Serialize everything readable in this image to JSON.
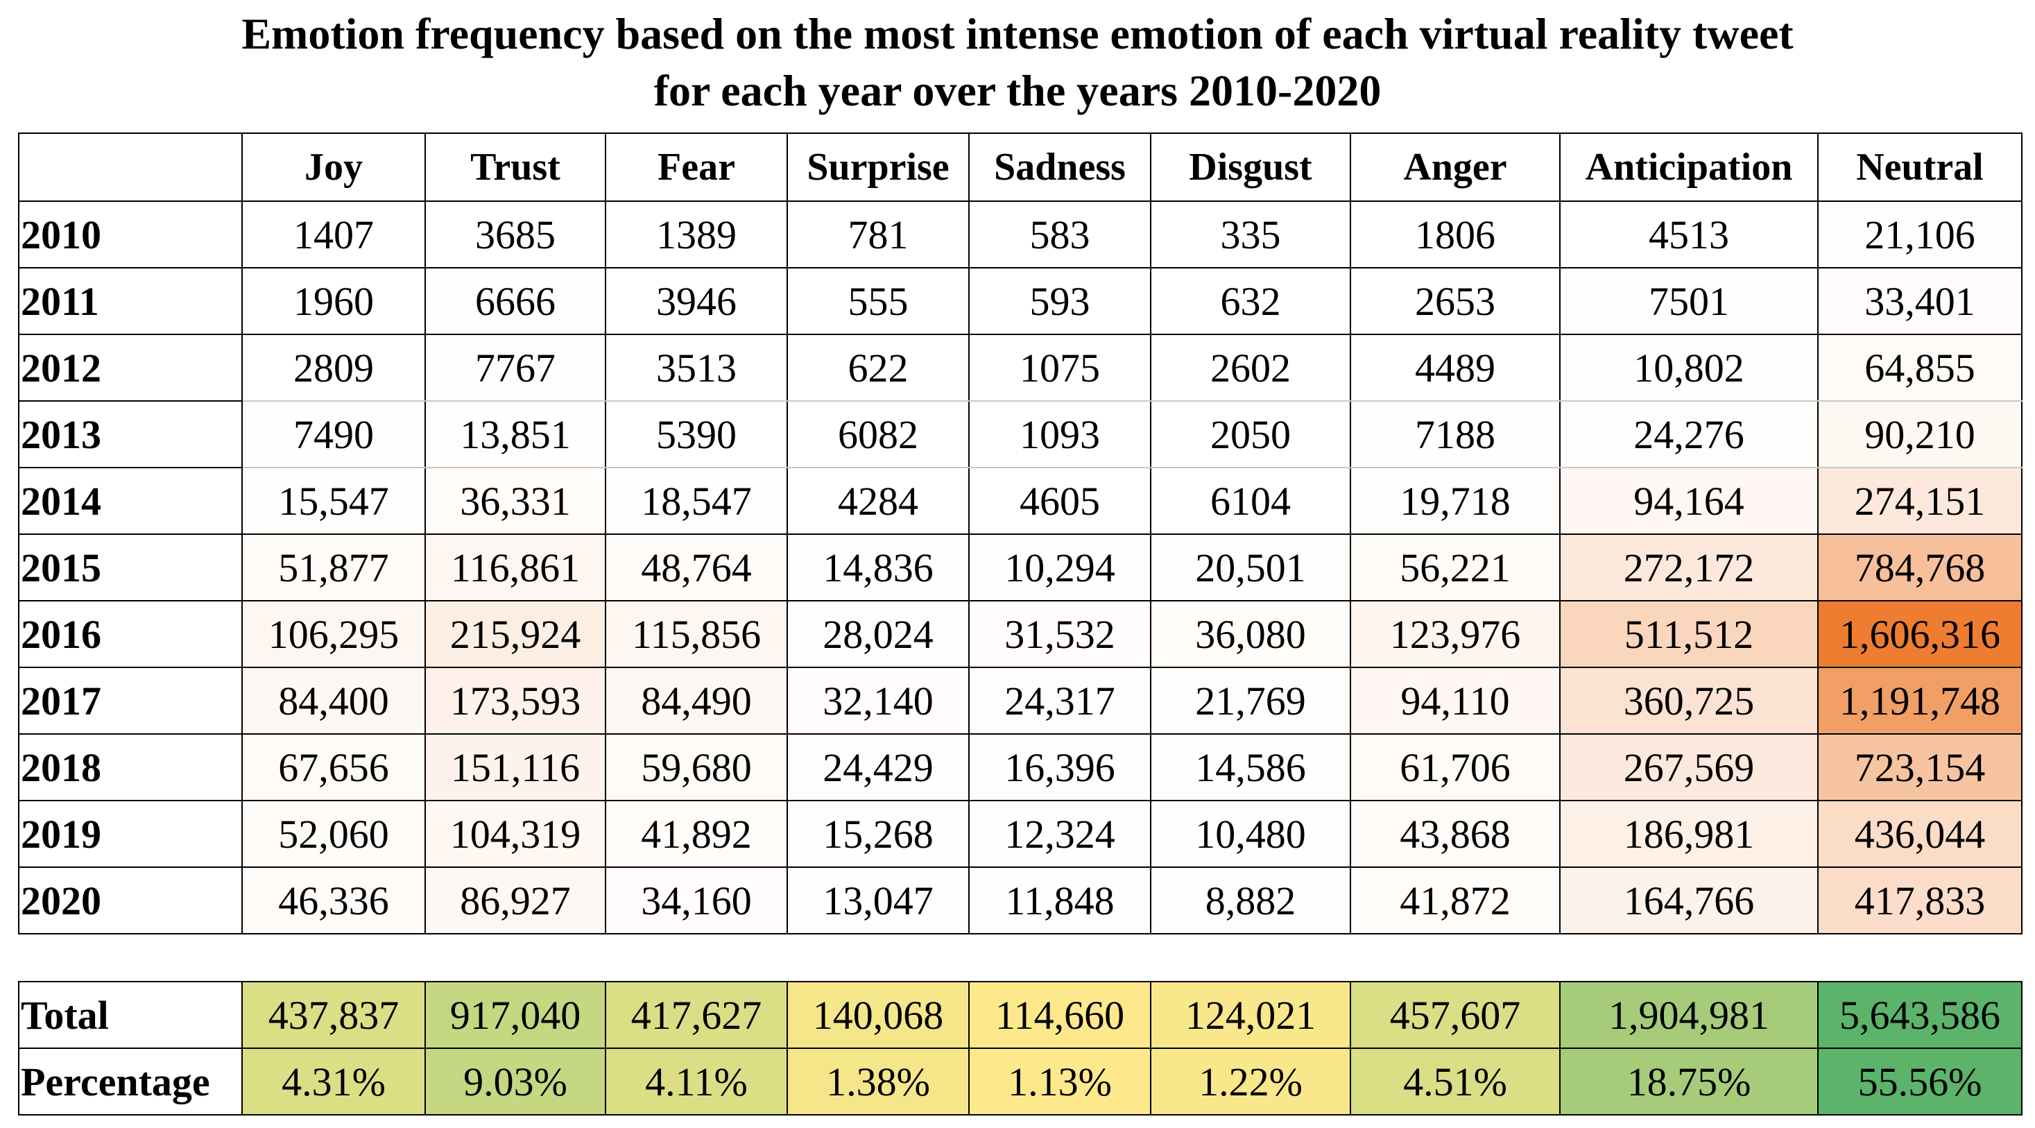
{
  "chart_data": {
    "type": "table",
    "title_lines": [
      "Emotion frequency based on the most intense emotion of each virtual reality tweet",
      "for each year over the years 2010-2020"
    ],
    "columns": [
      "Joy",
      "Trust",
      "Fear",
      "Surprise",
      "Sadness",
      "Disgust",
      "Anger",
      "Anticipation",
      "Neutral"
    ],
    "rows": [
      {
        "year": "2010",
        "values": [
          "1407",
          "3685",
          "1389",
          "781",
          "583",
          "335",
          "1806",
          "4513",
          "21,106"
        ],
        "numeric": [
          1407,
          3685,
          1389,
          781,
          583,
          335,
          1806,
          4513,
          21106
        ]
      },
      {
        "year": "2011",
        "values": [
          "1960",
          "6666",
          "3946",
          "555",
          "593",
          "632",
          "2653",
          "7501",
          "33,401"
        ],
        "numeric": [
          1960,
          6666,
          3946,
          555,
          593,
          632,
          2653,
          7501,
          33401
        ]
      },
      {
        "year": "2012",
        "values": [
          "2809",
          "7767",
          "3513",
          "622",
          "1075",
          "2602",
          "4489",
          "10,802",
          "64,855"
        ],
        "numeric": [
          2809,
          7767,
          3513,
          622,
          1075,
          2602,
          4489,
          10802,
          64855
        ]
      },
      {
        "year": "2013",
        "values": [
          "7490",
          "13,851",
          "5390",
          "6082",
          "1093",
          "2050",
          "7188",
          "24,276",
          "90,210"
        ],
        "numeric": [
          7490,
          13851,
          5390,
          6082,
          1093,
          2050,
          7188,
          24276,
          90210
        ]
      },
      {
        "year": "2014",
        "values": [
          "15,547",
          "36,331",
          "18,547",
          "4284",
          "4605",
          "6104",
          "19,718",
          "94,164",
          "274,151"
        ],
        "numeric": [
          15547,
          36331,
          18547,
          4284,
          4605,
          6104,
          19718,
          94164,
          274151
        ]
      },
      {
        "year": "2015",
        "values": [
          "51,877",
          "116,861",
          "48,764",
          "14,836",
          "10,294",
          "20,501",
          "56,221",
          "272,172",
          "784,768"
        ],
        "numeric": [
          51877,
          116861,
          48764,
          14836,
          10294,
          20501,
          56221,
          272172,
          784768
        ]
      },
      {
        "year": "2016",
        "values": [
          "106,295",
          "215,924",
          "115,856",
          "28,024",
          "31,532",
          "36,080",
          "123,976",
          "511,512",
          "1,606,316"
        ],
        "numeric": [
          106295,
          215924,
          115856,
          28024,
          31532,
          36080,
          123976,
          511512,
          1606316
        ]
      },
      {
        "year": "2017",
        "values": [
          "84,400",
          "173,593",
          "84,490",
          "32,140",
          "24,317",
          "21,769",
          "94,110",
          "360,725",
          "1,191,748"
        ],
        "numeric": [
          84400,
          173593,
          84490,
          32140,
          24317,
          21769,
          94110,
          360725,
          1191748
        ]
      },
      {
        "year": "2018",
        "values": [
          "67,656",
          "151,116",
          "59,680",
          "24,429",
          "16,396",
          "14,586",
          "61,706",
          "267,569",
          "723,154"
        ],
        "numeric": [
          67656,
          151116,
          59680,
          24429,
          16396,
          14586,
          61706,
          267569,
          723154
        ]
      },
      {
        "year": "2019",
        "values": [
          "52,060",
          "104,319",
          "41,892",
          "15,268",
          "12,324",
          "10,480",
          "43,868",
          "186,981",
          "436,044"
        ],
        "numeric": [
          52060,
          104319,
          41892,
          15268,
          12324,
          10480,
          43868,
          186981,
          436044
        ]
      },
      {
        "year": "2020",
        "values": [
          "46,336",
          "86,927",
          "34,160",
          "13,047",
          "11,848",
          "8,882",
          "41,872",
          "164,766",
          "417,833"
        ],
        "numeric": [
          46336,
          86927,
          34160,
          13047,
          11848,
          8882,
          41872,
          164766,
          417833
        ]
      }
    ],
    "summary": [
      {
        "label": "Total",
        "values": [
          "437,837",
          "917,040",
          "417,627",
          "140,068",
          "114,660",
          "124,021",
          "457,607",
          "1,904,981",
          "5,643,586"
        ],
        "numeric": [
          437837,
          917040,
          417627,
          140068,
          114660,
          124021,
          457607,
          1904981,
          5643586
        ]
      },
      {
        "label": "Percentage",
        "values": [
          "4.31%",
          "9.03%",
          "4.11%",
          "1.38%",
          "1.13%",
          "1.22%",
          "4.51%",
          "18.75%",
          "55.56%"
        ],
        "numeric": [
          4.31,
          9.03,
          4.11,
          1.38,
          1.13,
          1.22,
          4.51,
          18.75,
          55.56
        ]
      }
    ],
    "heat_scale": {
      "low_color": "#ffffff",
      "high_color": "#ee7d31",
      "min": 0,
      "max": 1606316
    },
    "summary_scale": {
      "low_color": "#fde98c",
      "high_color": "#5cb46b",
      "min": 114660,
      "max": 5643586
    }
  }
}
